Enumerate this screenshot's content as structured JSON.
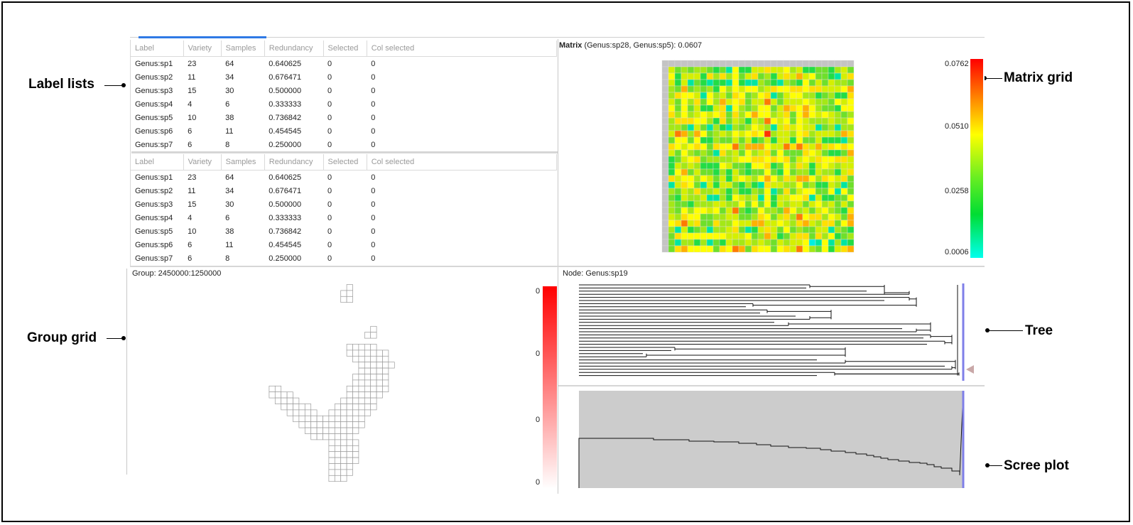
{
  "callouts": {
    "label_lists": "Label lists",
    "matrix_grid": "Matrix grid",
    "group_grid": "Group grid",
    "tree": "Tree",
    "scree_plot": "Scree plot"
  },
  "label_table": {
    "columns": [
      "Label",
      "Variety",
      "Samples",
      "Redundancy",
      "Selected",
      "Col selected"
    ],
    "rows": [
      [
        "Genus:sp1",
        "23",
        "64",
        "0.640625",
        "0",
        "0"
      ],
      [
        "Genus:sp2",
        "11",
        "34",
        "0.676471",
        "0",
        "0"
      ],
      [
        "Genus:sp3",
        "15",
        "30",
        "0.500000",
        "0",
        "0"
      ],
      [
        "Genus:sp4",
        "4",
        "6",
        "0.333333",
        "0",
        "0"
      ],
      [
        "Genus:sp5",
        "10",
        "38",
        "0.736842",
        "0",
        "0"
      ],
      [
        "Genus:sp6",
        "6",
        "11",
        "0.454545",
        "0",
        "0"
      ],
      [
        "Genus:sp7",
        "6",
        "8",
        "0.250000",
        "0",
        "0"
      ]
    ]
  },
  "matrix": {
    "caption_bold": "Matrix",
    "caption_rest": " (Genus:sp28, Genus:sp5): 0.0607",
    "legend_ticks": [
      "0.0762",
      "0.0510",
      "0.0258",
      "0.0006"
    ]
  },
  "group": {
    "caption": "Group: 2450000:1250000",
    "legend_ticks": [
      "0",
      "0",
      "0",
      "0"
    ]
  },
  "tree": {
    "caption": "Node: Genus:sp19"
  },
  "colors": {
    "accent_blue": "#2f7ae5",
    "tree_marker": "#7f7fe8",
    "scree_fill": "#cccccc",
    "group_ramp_top": "#ff0000"
  }
}
